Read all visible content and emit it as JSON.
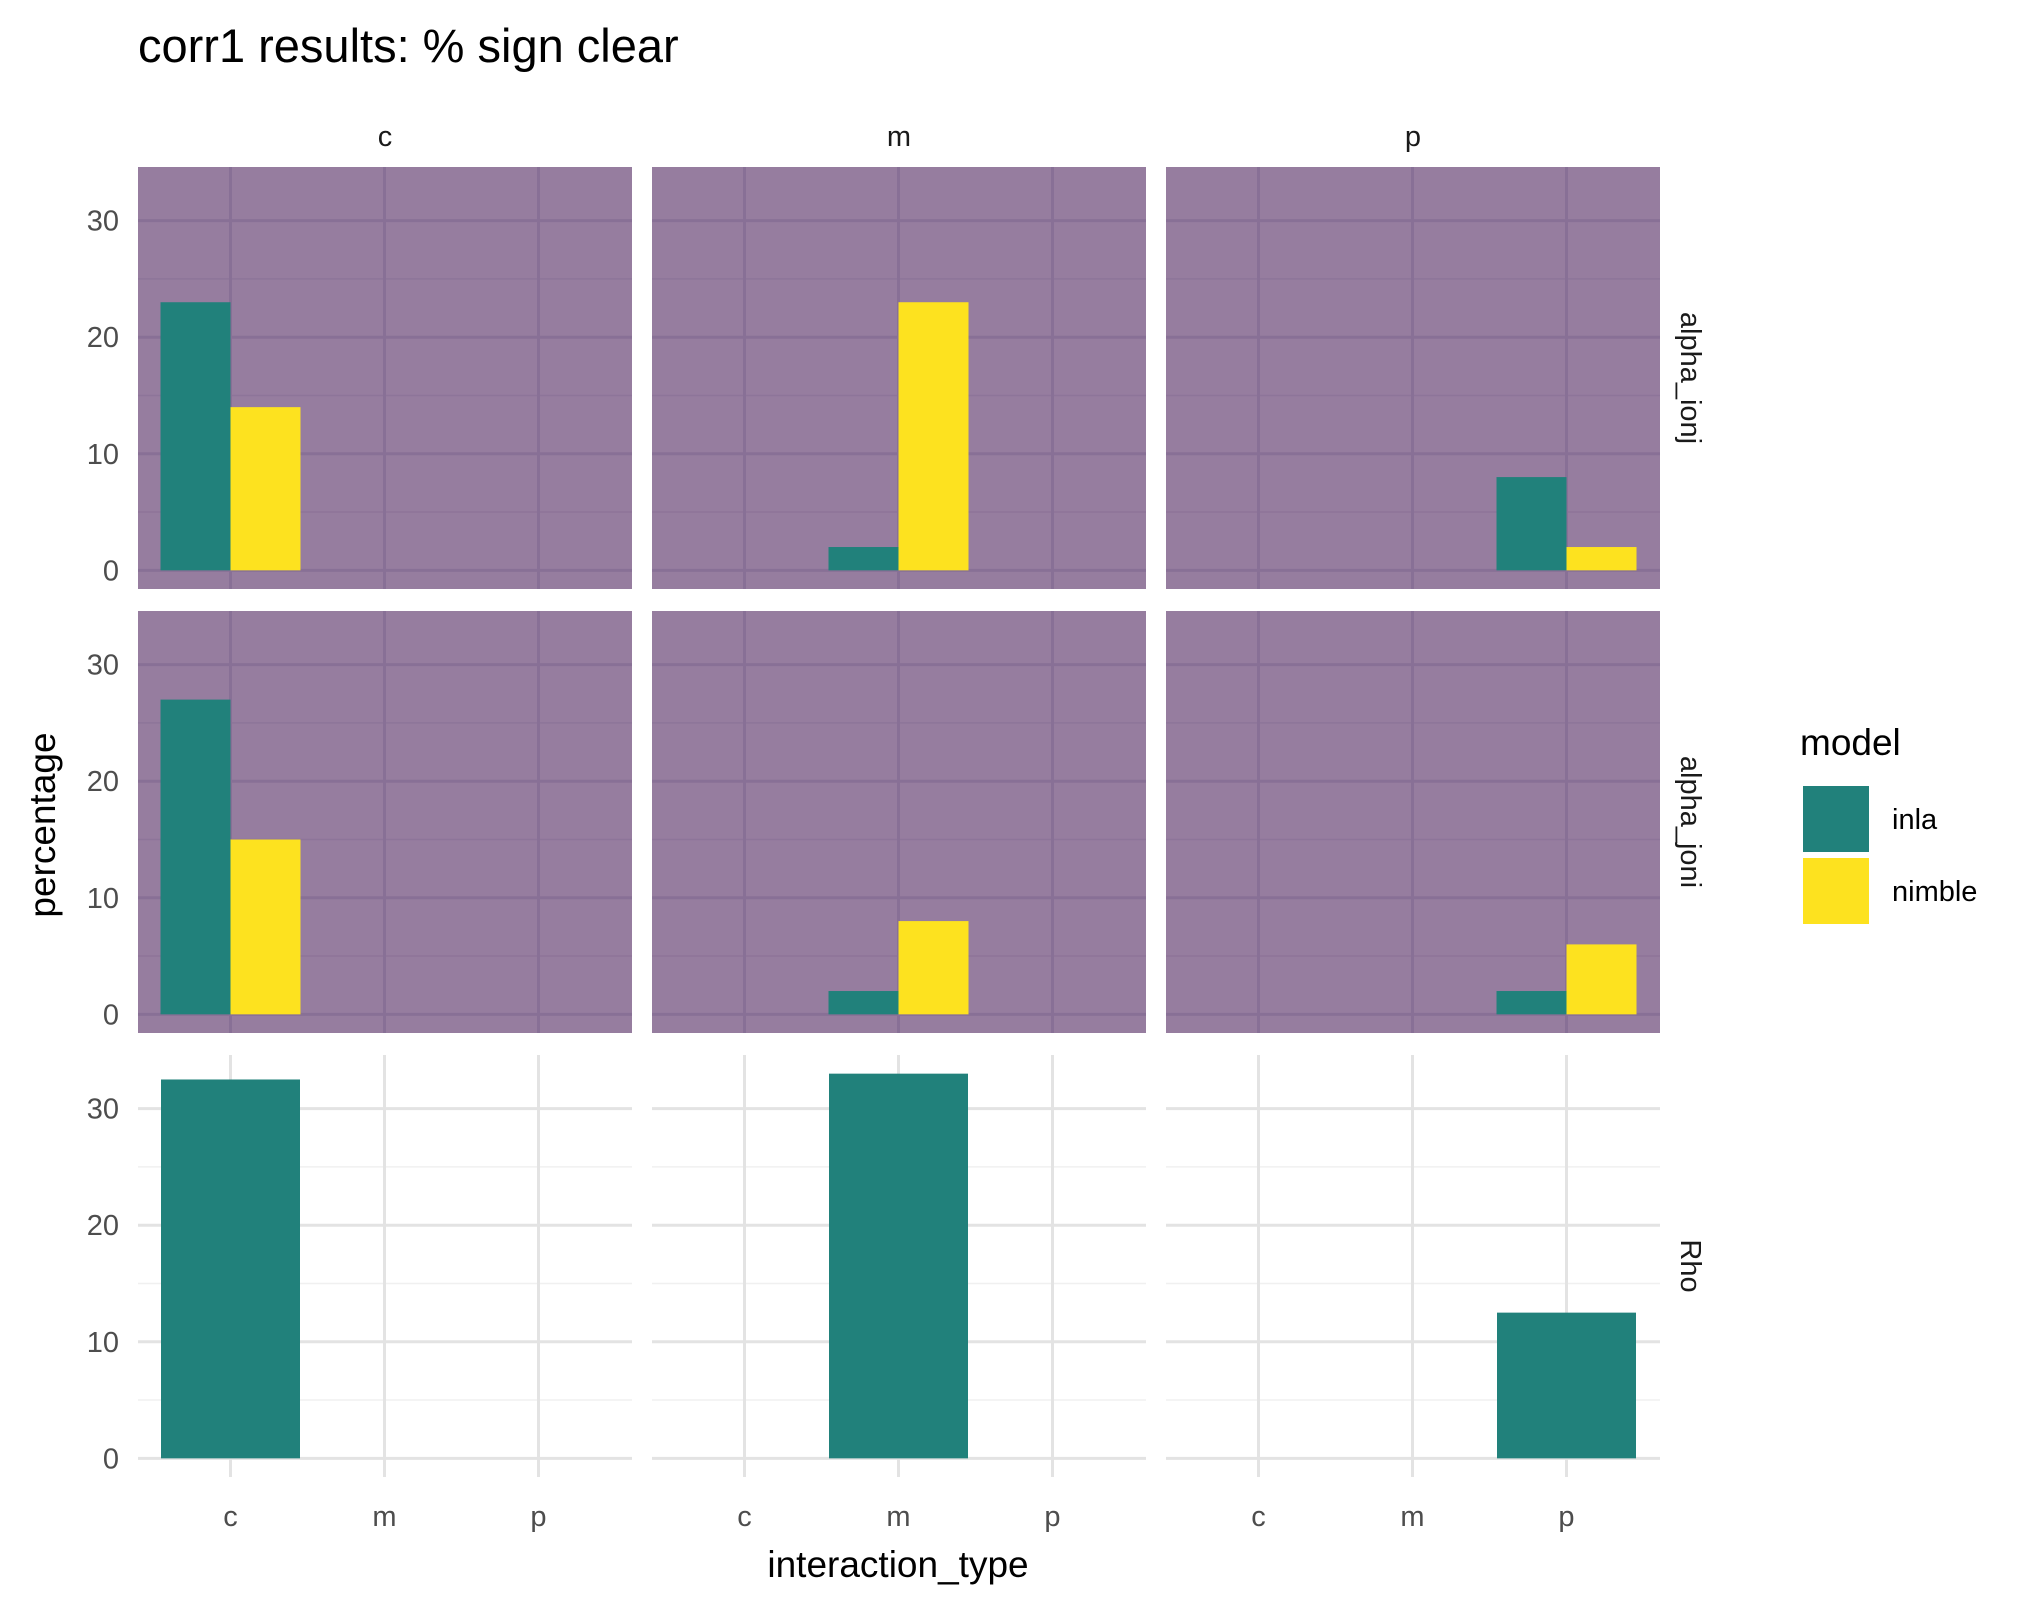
{
  "chart_data": {
    "type": "bar",
    "title": "corr1 results: % sign clear",
    "xlabel": "interaction_type",
    "ylabel": "percentage",
    "categories": [
      "c",
      "m",
      "p"
    ],
    "facet_cols": [
      "c",
      "m",
      "p"
    ],
    "facet_rows": [
      "alpha_ionj",
      "alpha_joni",
      "Rho"
    ],
    "ylim": [
      -1.6,
      34.6
    ],
    "yticks": [
      0,
      10,
      20,
      30
    ],
    "grid": true,
    "legend": {
      "title": "model",
      "position": "right",
      "entries": [
        {
          "label": "inla",
          "color": "#21817B"
        },
        {
          "label": "nimble",
          "color": "#FDE21F"
        }
      ]
    },
    "highlight_background": "#967D9F",
    "panels": [
      {
        "row": "alpha_ionj",
        "col": "c",
        "highlighted": true,
        "series": [
          {
            "name": "inla",
            "values": [
              23,
              null,
              null
            ]
          },
          {
            "name": "nimble",
            "values": [
              14,
              null,
              null
            ]
          }
        ]
      },
      {
        "row": "alpha_ionj",
        "col": "m",
        "highlighted": true,
        "series": [
          {
            "name": "inla",
            "values": [
              null,
              2,
              null
            ]
          },
          {
            "name": "nimble",
            "values": [
              null,
              23,
              null
            ]
          }
        ]
      },
      {
        "row": "alpha_ionj",
        "col": "p",
        "highlighted": true,
        "series": [
          {
            "name": "inla",
            "values": [
              null,
              null,
              8
            ]
          },
          {
            "name": "nimble",
            "values": [
              null,
              null,
              2
            ]
          }
        ]
      },
      {
        "row": "alpha_joni",
        "col": "c",
        "highlighted": true,
        "series": [
          {
            "name": "inla",
            "values": [
              27,
              null,
              null
            ]
          },
          {
            "name": "nimble",
            "values": [
              15,
              null,
              null
            ]
          }
        ]
      },
      {
        "row": "alpha_joni",
        "col": "m",
        "highlighted": true,
        "series": [
          {
            "name": "inla",
            "values": [
              null,
              2,
              null
            ]
          },
          {
            "name": "nimble",
            "values": [
              null,
              8,
              null
            ]
          }
        ]
      },
      {
        "row": "alpha_joni",
        "col": "p",
        "highlighted": true,
        "series": [
          {
            "name": "inla",
            "values": [
              null,
              null,
              2
            ]
          },
          {
            "name": "nimble",
            "values": [
              null,
              null,
              6
            ]
          }
        ]
      },
      {
        "row": "Rho",
        "col": "c",
        "highlighted": false,
        "series": [
          {
            "name": "inla",
            "values": [
              32.5,
              null,
              null
            ]
          }
        ]
      },
      {
        "row": "Rho",
        "col": "m",
        "highlighted": false,
        "series": [
          {
            "name": "inla",
            "values": [
              null,
              33,
              null
            ]
          }
        ]
      },
      {
        "row": "Rho",
        "col": "p",
        "highlighted": false,
        "series": [
          {
            "name": "inla",
            "values": [
              null,
              null,
              12.5
            ]
          }
        ]
      }
    ]
  }
}
